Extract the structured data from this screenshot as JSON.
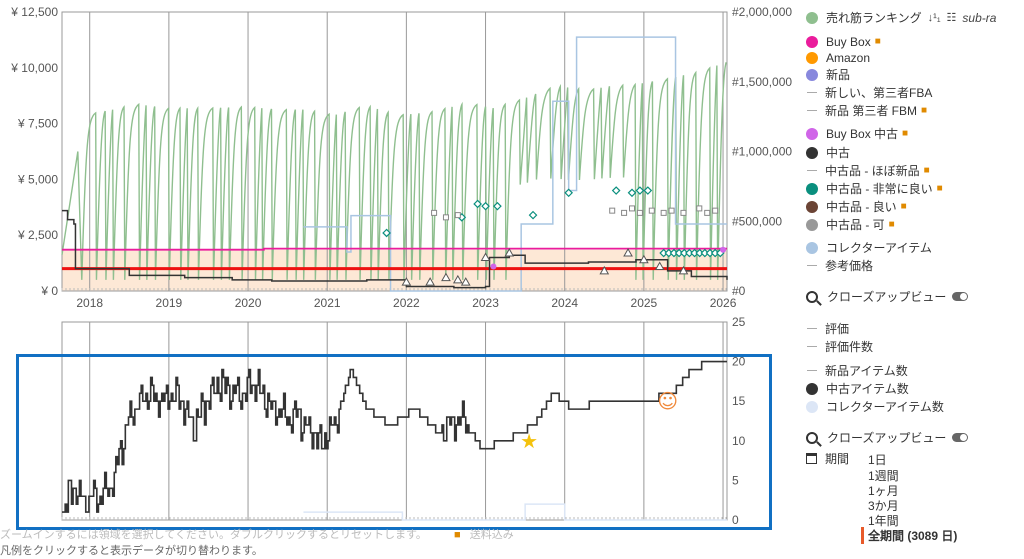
{
  "chart_data": [
    {
      "type": "line",
      "title": "",
      "x_axis": {
        "ticks": [
          "2018",
          "2019",
          "2020",
          "2021",
          "2022",
          "2023",
          "2024",
          "2025",
          "2026"
        ],
        "range": [
          2017.65,
          2026.05
        ]
      },
      "y_left": {
        "ticks": [
          "¥ 0",
          "¥ 2,500",
          "¥ 5,000",
          "¥ 7,500",
          "¥ 10,000",
          "¥ 12,500"
        ],
        "range": [
          0,
          12500
        ]
      },
      "y_right": {
        "ticks": [
          "#0",
          "#500,000",
          "#1,000,000",
          "#1,500,000",
          "#2,000,000"
        ],
        "range": [
          0,
          2000000
        ]
      },
      "grid": "vertical",
      "series": [
        {
          "name": "売れ筋ランキング",
          "axis": "right",
          "color": "#8fbf8f",
          "shape": "sawtooth",
          "points": [
            [
              2017.65,
              250000
            ],
            [
              2017.85,
              1250000
            ],
            [
              2018.3,
              1300000
            ],
            [
              2018.6,
              1340000
            ],
            [
              2019.0,
              1310000
            ],
            [
              2019.5,
              1310000
            ],
            [
              2020.0,
              1320000
            ],
            [
              2020.4,
              1300000
            ],
            [
              2020.75,
              1300000
            ],
            [
              2021.1,
              1260000
            ],
            [
              2021.5,
              1330000
            ],
            [
              2021.9,
              1260000
            ],
            [
              2022.3,
              1280000
            ],
            [
              2022.8,
              1350000
            ],
            [
              2023.1,
              1310000
            ],
            [
              2023.5,
              1380000
            ],
            [
              2023.9,
              1470000
            ],
            [
              2024.3,
              1440000
            ],
            [
              2024.6,
              1470000
            ],
            [
              2024.9,
              1480000
            ],
            [
              2025.3,
              1520000
            ],
            [
              2025.7,
              1570000
            ],
            [
              2026.05,
              1640000
            ]
          ]
        },
        {
          "name": "Buy Box",
          "axis": "left",
          "color": "#ea1c9c",
          "points": [
            [
              2017.65,
              1850
            ],
            [
              2020.2,
              1850
            ],
            [
              2020.2,
              1900
            ],
            [
              2026.05,
              1900
            ]
          ]
        },
        {
          "name": "参考価格",
          "axis": "left",
          "color": "#ee1111",
          "points": [
            [
              2017.65,
              1000
            ],
            [
              2026.05,
              1000
            ]
          ]
        },
        {
          "name": "中古",
          "axis": "left",
          "color": "#333333",
          "points": [
            [
              2017.65,
              3600
            ],
            [
              2017.72,
              3200
            ],
            [
              2017.8,
              3000
            ],
            [
              2017.82,
              1000
            ],
            [
              2018.5,
              700
            ],
            [
              2019.2,
              600
            ],
            [
              2019.8,
              500
            ],
            [
              2020.3,
              450
            ],
            [
              2021.0,
              450
            ],
            [
              2021.5,
              500
            ],
            [
              2022.0,
              200
            ],
            [
              2022.6,
              150
            ],
            [
              2023.0,
              200
            ],
            [
              2023.05,
              1500
            ],
            [
              2023.3,
              1600
            ],
            [
              2023.5,
              1250
            ],
            [
              2024.3,
              1300
            ],
            [
              2024.9,
              1400
            ],
            [
              2025.3,
              900
            ],
            [
              2025.6,
              650
            ],
            [
              2026.05,
              500
            ]
          ]
        },
        {
          "name": "コレクターアイテム",
          "axis": "right",
          "color": "#a9c5e2",
          "points": [
            [
              2020.7,
              460000
            ],
            [
              2021.2,
              460000
            ],
            [
              2021.25,
              280000
            ],
            [
              2021.3,
              540000
            ],
            [
              2021.75,
              540000
            ],
            [
              2021.8,
              0
            ],
            [
              2023.4,
              0
            ],
            [
              2023.45,
              480000
            ],
            [
              2023.8,
              480000
            ],
            [
              2023.85,
              1360000
            ],
            [
              2024.05,
              720000
            ],
            [
              2024.15,
              1820000
            ],
            [
              2024.7,
              1820000
            ],
            [
              2025.4,
              480000
            ],
            [
              2026.05,
              480000
            ]
          ]
        }
      ]
    },
    {
      "type": "line",
      "title": "",
      "y_right": {
        "ticks": [
          "0",
          "5",
          "10",
          "15",
          "20",
          "25"
        ],
        "range": [
          0,
          25
        ]
      },
      "series": [
        {
          "name": "中古アイテム数",
          "color": "#333333",
          "points": [
            [
              2017.65,
              1
            ],
            [
              2017.8,
              4
            ],
            [
              2017.95,
              2
            ],
            [
              2018.1,
              3
            ],
            [
              2018.3,
              5
            ],
            [
              2018.5,
              13
            ],
            [
              2018.7,
              16
            ],
            [
              2018.9,
              15
            ],
            [
              2019.1,
              16
            ],
            [
              2019.3,
              12
            ],
            [
              2019.6,
              17
            ],
            [
              2019.9,
              16
            ],
            [
              2020.1,
              17
            ],
            [
              2020.3,
              14
            ],
            [
              2020.6,
              13
            ],
            [
              2020.9,
              10
            ],
            [
              2021.1,
              12
            ],
            [
              2021.3,
              19
            ],
            [
              2021.5,
              14
            ],
            [
              2021.8,
              12
            ],
            [
              2022.1,
              14
            ],
            [
              2022.4,
              11
            ],
            [
              2022.7,
              13
            ],
            [
              2022.95,
              9
            ],
            [
              2023.25,
              10
            ],
            [
              2023.6,
              12
            ],
            [
              2023.85,
              16
            ],
            [
              2024.1,
              14
            ],
            [
              2024.5,
              15
            ],
            [
              2025.0,
              15
            ],
            [
              2025.35,
              16
            ],
            [
              2025.6,
              19
            ],
            [
              2025.85,
              20
            ],
            [
              2026.05,
              20
            ]
          ]
        },
        {
          "name": "コレクターアイテム数",
          "color": "#c8d8f2",
          "points": [
            [
              2020.7,
              1
            ],
            [
              2021.9,
              1
            ],
            [
              2021.95,
              0
            ],
            [
              2023.45,
              0
            ],
            [
              2023.5,
              2
            ],
            [
              2023.9,
              2
            ],
            [
              2024.0,
              0
            ],
            [
              2026.05,
              0
            ]
          ]
        }
      ],
      "annotations": [
        {
          "type": "star-emoji",
          "x": 2023.55,
          "y": 10
        },
        {
          "type": "starstruck-emoji",
          "x": 2025.3,
          "y": 15
        }
      ]
    }
  ],
  "legend": {
    "sales_rank": "売れ筋ランキング",
    "sales_rank_sort": "↓¹₁",
    "sub_ranks": "sub-ra",
    "buybox": "Buy Box",
    "amazon": "Amazon",
    "new": "新品",
    "new_fba": "新しい、第三者FBA",
    "new_fbm": "新品 第三者 FBM",
    "buybox_used": "Buy Box 中古",
    "used": "中古",
    "used_like_new": "中古品 - ほぼ新品",
    "used_very_good": "中古品 - 非常に良い",
    "used_good": "中古品 - 良い",
    "used_acceptable": "中古品 - 可",
    "collectible": "コレクターアイテム",
    "list_price": "参考価格",
    "zoom_top": "クローズアップビュー",
    "rating": "評価",
    "rating_count": "評価件数",
    "new_count": "新品アイテム数",
    "used_count": "中古アイテム数",
    "collectible_count": "コレクターアイテム数",
    "zoom_bottom": "クローズアップビュー"
  },
  "period": {
    "label": "期間",
    "options": [
      "1日",
      "1週間",
      "1ヶ月",
      "3か月",
      "1年間"
    ],
    "active": "全期間 (3089 日)"
  },
  "footnotes": {
    "zoom_hint": "ズームインするには領域を選択してください。ダブルクリックするとリセットします。",
    "shipping_hint": "送料込み",
    "legend_hint": "凡例をクリックすると表示データが切り替わります。"
  },
  "colors": {
    "sales_rank": "#8fbf8f",
    "buybox": "#ea1c9c",
    "amazon": "#ff9900",
    "new": "#8888dd",
    "buybox_used": "#d065e8",
    "used": "#333333",
    "used_very_good": "#0a8f7e",
    "used_good": "#6b4435",
    "used_acceptable": "#999999",
    "collectible": "#a9c5e2",
    "collectible_count": "#dce6f6",
    "list_price": "#ee1111",
    "amazon_band": "#fde8d6",
    "highlight_box": "#1170c3"
  }
}
